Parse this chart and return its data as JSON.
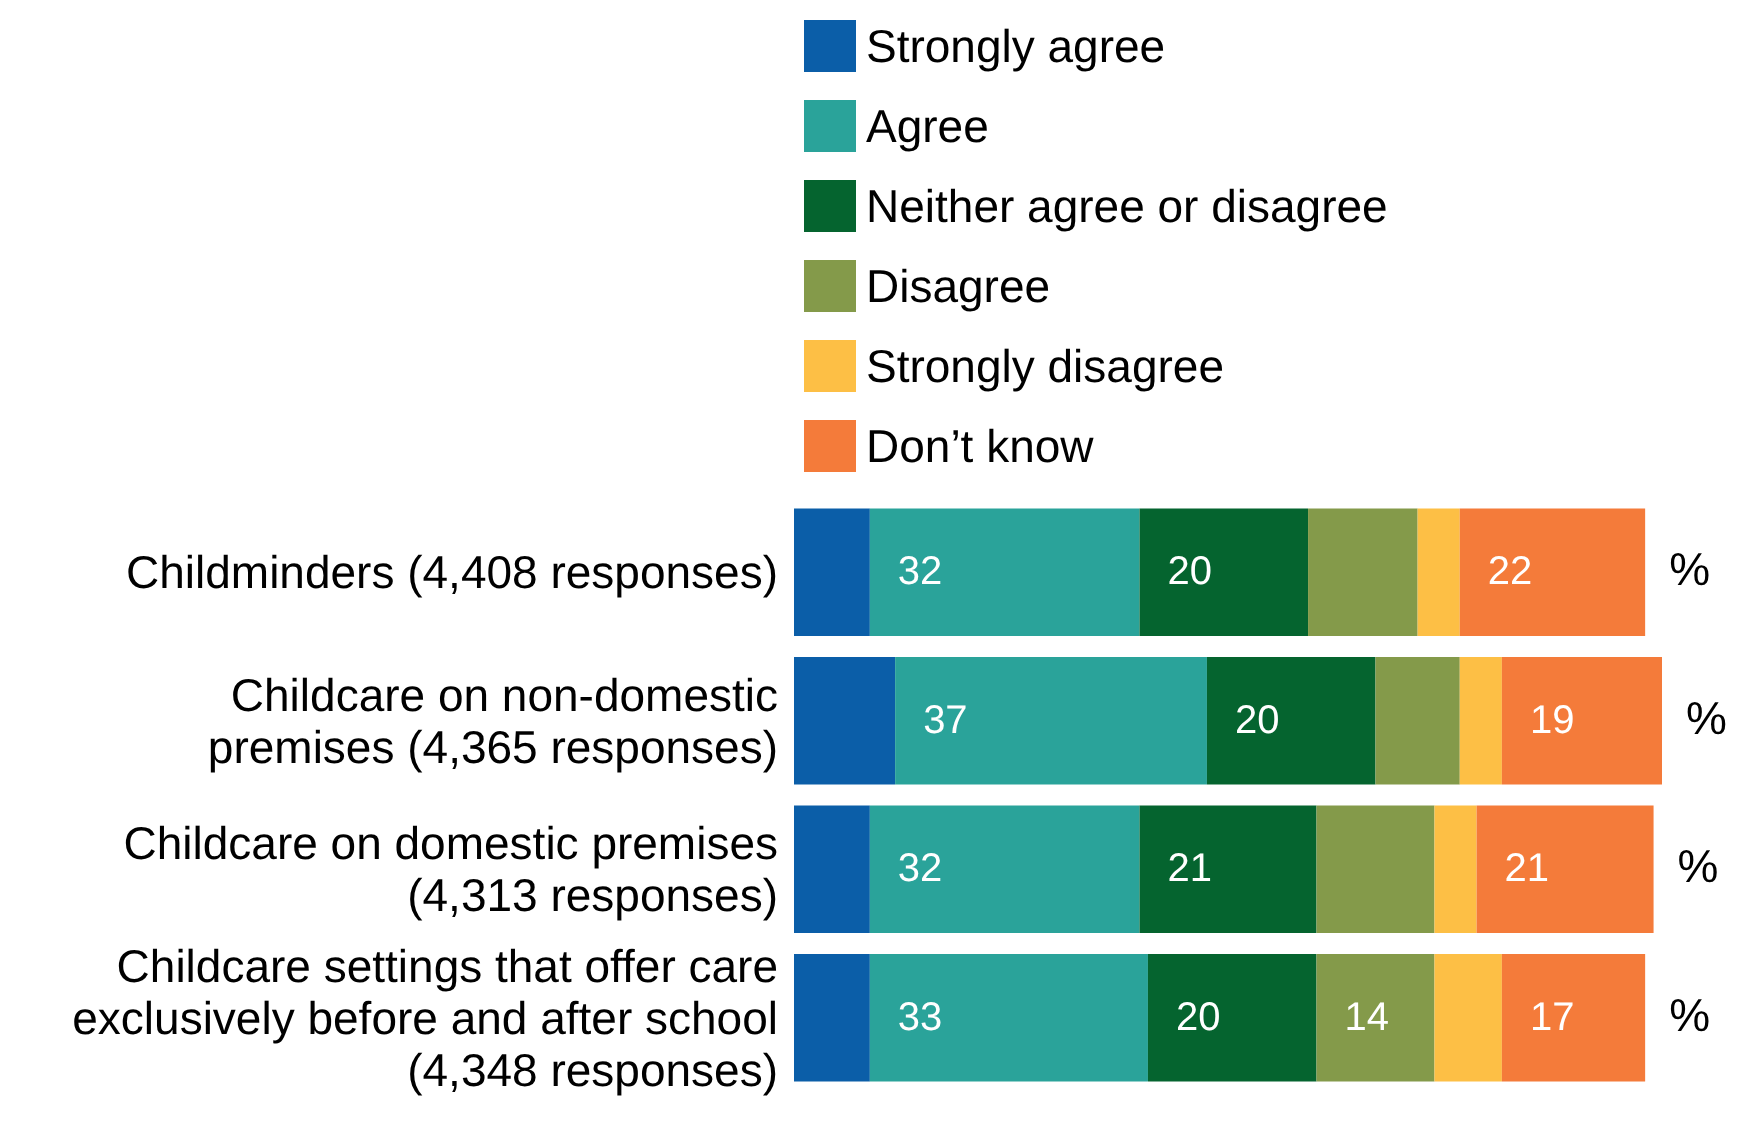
{
  "chart_data": {
    "type": "bar",
    "orientation": "horizontal",
    "stacked": true,
    "legend": "top",
    "categories": [
      "Childminders (4,408 responses)",
      "Childcare on non-domestic\npremises (4,365 responses)",
      "Childcare on domestic premises\n(4,313 responses)",
      "Childcare settings that offer care\nexclusively before and after school\n(4,348 responses)"
    ],
    "series": [
      {
        "name": "Strongly agree",
        "color": "#0b5ea8",
        "values": [
          9,
          12,
          9,
          9
        ],
        "value_labels": [
          null,
          null,
          null,
          null
        ]
      },
      {
        "name": "Agree",
        "color": "#2aa39a",
        "values": [
          32,
          37,
          32,
          33
        ],
        "value_labels": [
          "32",
          "37",
          "32",
          "33"
        ]
      },
      {
        "name": "Neither agree or disagree",
        "color": "#05642f",
        "values": [
          20,
          20,
          21,
          20
        ],
        "value_labels": [
          "20",
          "20",
          "21",
          "20"
        ]
      },
      {
        "name": "Disagree",
        "color": "#849a4a",
        "values": [
          13,
          10,
          14,
          14
        ],
        "value_labels": [
          null,
          null,
          null,
          "14"
        ]
      },
      {
        "name": "Strongly disagree",
        "color": "#fdbf45",
        "values": [
          5,
          5,
          5,
          8
        ],
        "value_labels": [
          null,
          null,
          null,
          null
        ]
      },
      {
        "name": "Don’t know",
        "color": "#f47b3a",
        "values": [
          22,
          19,
          21,
          17
        ],
        "value_labels": [
          "22",
          "19",
          "21",
          "17"
        ]
      }
    ],
    "annotations": [
      "%",
      "%",
      "%",
      "%"
    ]
  }
}
